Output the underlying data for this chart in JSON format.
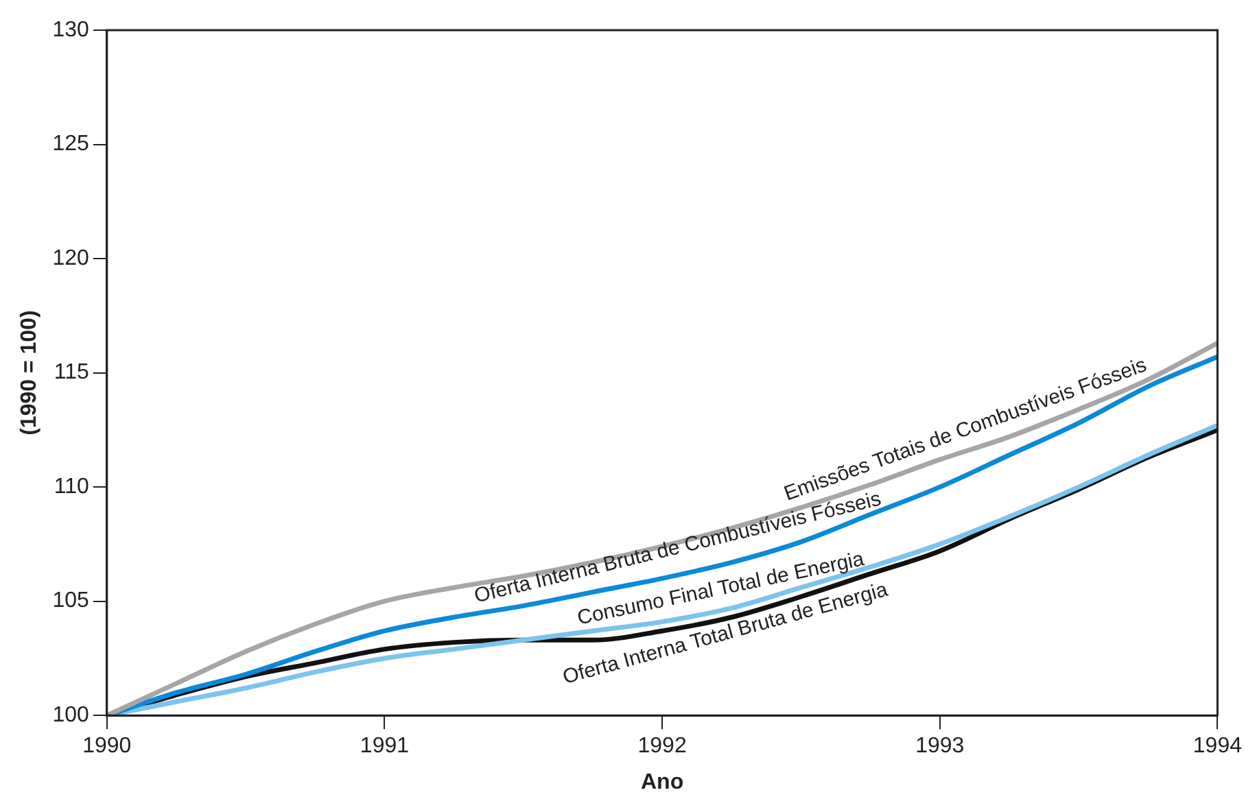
{
  "chart_data": {
    "type": "line",
    "xlabel": "Ano",
    "ylabel": "(1990 = 100)",
    "x": [
      1990,
      1990.25,
      1990.5,
      1990.75,
      1991,
      1991.25,
      1991.5,
      1991.75,
      1992,
      1992.25,
      1992.5,
      1992.75,
      1993,
      1993.25,
      1993.5,
      1993.75,
      1994
    ],
    "series": [
      {
        "name": "Emissões Totais de Combustíveis Fósseis",
        "color": "#a6a6a6",
        "values": [
          100,
          101.4,
          102.8,
          104.0,
          105.0,
          105.6,
          106.1,
          106.7,
          107.4,
          108.2,
          109.1,
          110.1,
          111.2,
          112.2,
          113.4,
          114.7,
          116.3
        ]
      },
      {
        "name": "Oferta Interna Bruta de Combustíveis Fósseis",
        "color": "#0a8ad8",
        "values": [
          100,
          101.0,
          101.8,
          102.8,
          103.7,
          104.3,
          104.8,
          105.4,
          106.0,
          106.7,
          107.6,
          108.8,
          110.0,
          111.4,
          112.8,
          114.4,
          115.7
        ]
      },
      {
        "name": "Consumo Final Total de Energia",
        "color": "#7cc4ee",
        "values": [
          100,
          100.6,
          101.2,
          101.9,
          102.5,
          102.9,
          103.3,
          103.7,
          104.1,
          104.7,
          105.6,
          106.5,
          107.5,
          108.7,
          110.0,
          111.4,
          112.7
        ]
      },
      {
        "name": "Oferta Interna Total Bruta de Energia",
        "color": "#111111",
        "values": [
          100,
          100.9,
          101.7,
          102.3,
          102.9,
          103.2,
          103.3,
          103.3,
          103.7,
          104.3,
          105.2,
          106.2,
          107.2,
          108.6,
          109.9,
          111.3,
          112.5
        ]
      }
    ],
    "xlim": [
      1990,
      1994
    ],
    "xticks": [
      1990,
      1991,
      1992,
      1993,
      1994
    ],
    "ylim": [
      100,
      130
    ],
    "yticks": [
      100,
      105,
      110,
      115,
      120,
      125,
      130
    ],
    "grid": false,
    "legend": false,
    "marker": "none",
    "line_style": "solid"
  }
}
